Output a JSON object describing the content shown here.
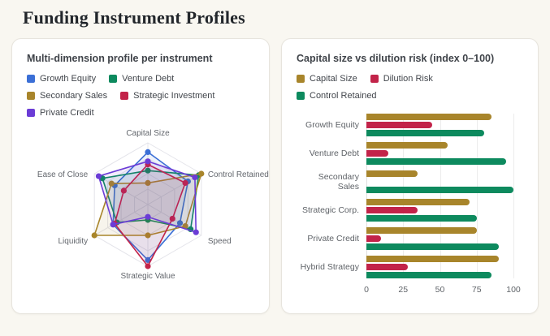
{
  "page": {
    "title": "Funding Instrument Profiles",
    "background": "#f9f7f1"
  },
  "colors": {
    "growth_equity": "#3b6fd6",
    "venture_debt": "#0d8a5e",
    "secondary_sales": "#a8852b",
    "strategic_investment": "#c22349",
    "private_credit": "#6b3cd6",
    "grid": "#e4e4ea",
    "label": "#5f6368"
  },
  "chart_data": [
    {
      "type": "radar",
      "title": "Multi-dimension profile per instrument",
      "axes": [
        "Capital Size",
        "Control Retained",
        "Speed",
        "Strategic Value",
        "Liquidity",
        "Ease of Close"
      ],
      "scale_min": 0,
      "scale_max": 100,
      "rings": 4,
      "legend_position": "top",
      "series": [
        {
          "name": "Growth Equity",
          "color": "#3b6fd6",
          "values": [
            85,
            75,
            60,
            90,
            65,
            62
          ]
        },
        {
          "name": "Venture Debt",
          "color": "#0d8a5e",
          "values": [
            55,
            95,
            80,
            25,
            58,
            85
          ]
        },
        {
          "name": "Secondary Sales",
          "color": "#a8852b",
          "values": [
            35,
            100,
            70,
            50,
            100,
            68
          ]
        },
        {
          "name": "Strategic Investment",
          "color": "#c22349",
          "values": [
            65,
            70,
            46,
            100,
            62,
            45
          ]
        },
        {
          "name": "Private Credit",
          "color": "#6b3cd6",
          "values": [
            70,
            88,
            90,
            20,
            65,
            92
          ]
        }
      ]
    },
    {
      "type": "bar",
      "orientation": "horizontal",
      "title": "Capital size vs dilution risk (index 0–100)",
      "categories": [
        "Growth Equity",
        "Venture Debt",
        "Secondary Sales",
        "Strategic Corp.",
        "Private Credit",
        "Hybrid Strategy"
      ],
      "series": [
        {
          "name": "Capital Size",
          "color": "#a8852b",
          "values": [
            85,
            55,
            35,
            70,
            75,
            90
          ]
        },
        {
          "name": "Dilution Risk",
          "color": "#c22349",
          "values": [
            45,
            15,
            0,
            35,
            10,
            28
          ]
        },
        {
          "name": "Control Retained",
          "color": "#0d8a5e",
          "values": [
            80,
            95,
            100,
            75,
            90,
            85
          ]
        }
      ],
      "xticks": [
        0,
        25,
        50,
        75,
        100
      ],
      "xlim": [
        0,
        100
      ],
      "grid": true,
      "legend_position": "top"
    }
  ]
}
